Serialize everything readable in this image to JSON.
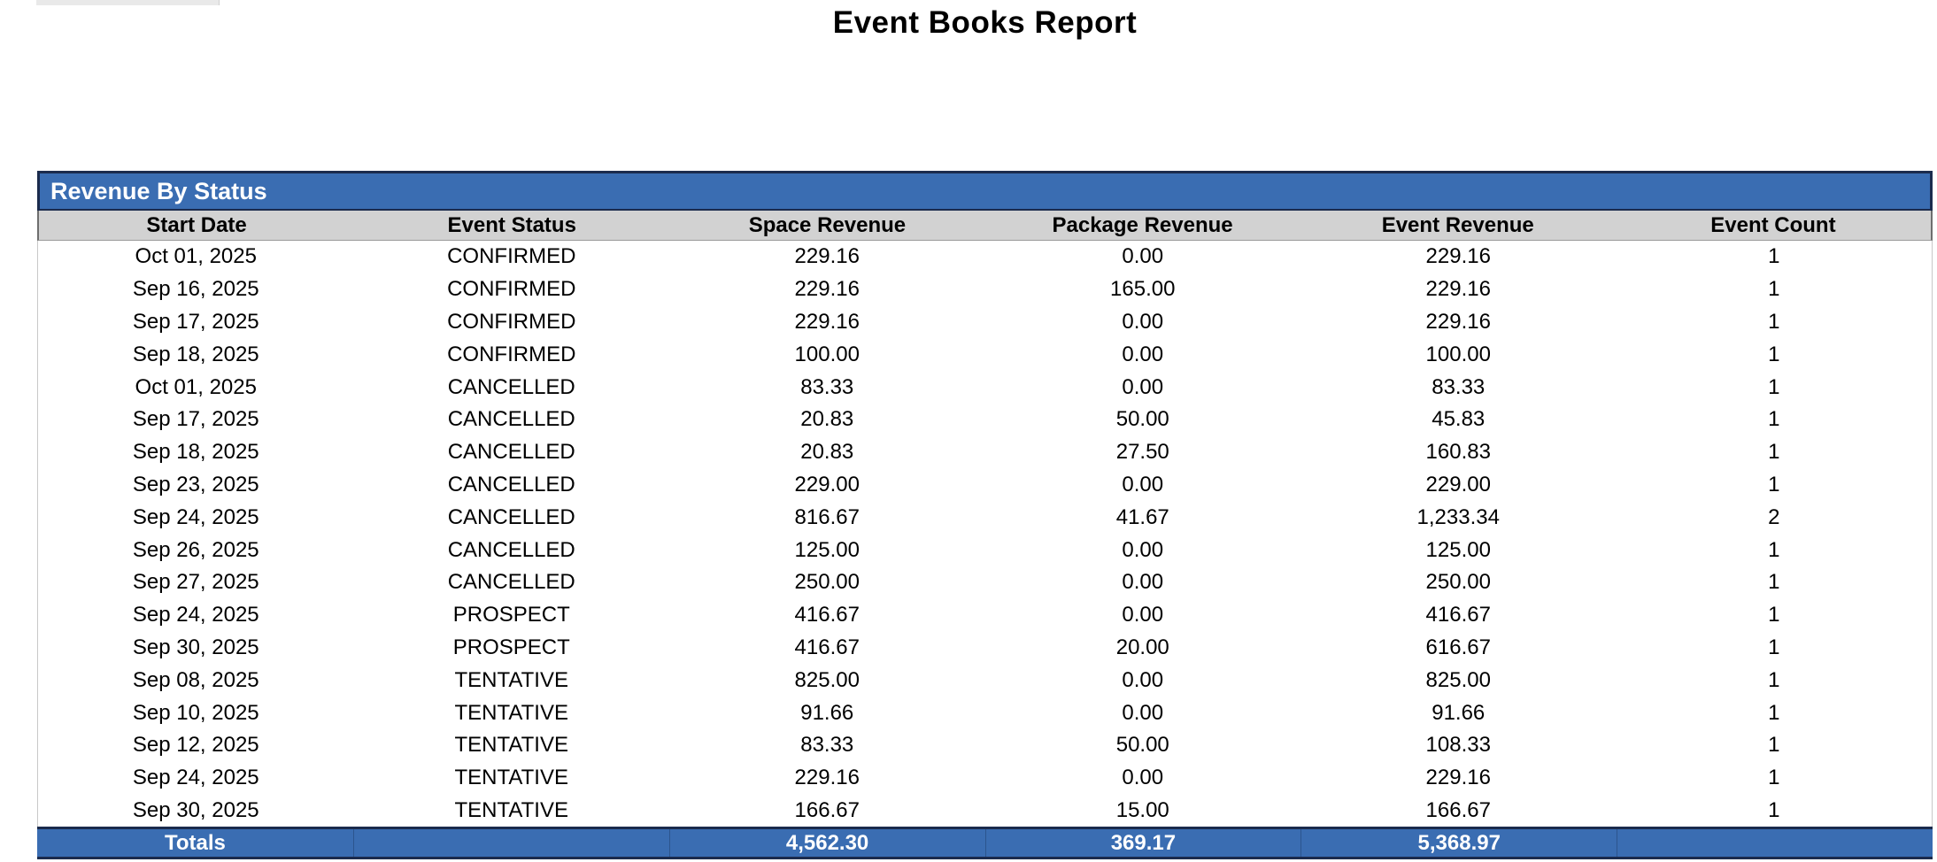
{
  "page": {
    "title": "Event Books Report"
  },
  "report": {
    "section_title": "Revenue By Status",
    "columns": [
      "Start Date",
      "Event Status",
      "Space Revenue",
      "Package Revenue",
      "Event Revenue",
      "Event Count"
    ],
    "rows": [
      [
        "Oct 01, 2025",
        "CONFIRMED",
        "229.16",
        "0.00",
        "229.16",
        "1"
      ],
      [
        "Sep 16, 2025",
        "CONFIRMED",
        "229.16",
        "165.00",
        "229.16",
        "1"
      ],
      [
        "Sep 17, 2025",
        "CONFIRMED",
        "229.16",
        "0.00",
        "229.16",
        "1"
      ],
      [
        "Sep 18, 2025",
        "CONFIRMED",
        "100.00",
        "0.00",
        "100.00",
        "1"
      ],
      [
        "Oct 01, 2025",
        "CANCELLED",
        "83.33",
        "0.00",
        "83.33",
        "1"
      ],
      [
        "Sep 17, 2025",
        "CANCELLED",
        "20.83",
        "50.00",
        "45.83",
        "1"
      ],
      [
        "Sep 18, 2025",
        "CANCELLED",
        "20.83",
        "27.50",
        "160.83",
        "1"
      ],
      [
        "Sep 23, 2025",
        "CANCELLED",
        "229.00",
        "0.00",
        "229.00",
        "1"
      ],
      [
        "Sep 24, 2025",
        "CANCELLED",
        "816.67",
        "41.67",
        "1,233.34",
        "2"
      ],
      [
        "Sep 26, 2025",
        "CANCELLED",
        "125.00",
        "0.00",
        "125.00",
        "1"
      ],
      [
        "Sep 27, 2025",
        "CANCELLED",
        "250.00",
        "0.00",
        "250.00",
        "1"
      ],
      [
        "Sep 24, 2025",
        "PROSPECT",
        "416.67",
        "0.00",
        "416.67",
        "1"
      ],
      [
        "Sep 30, 2025",
        "PROSPECT",
        "416.67",
        "20.00",
        "616.67",
        "1"
      ],
      [
        "Sep 08, 2025",
        "TENTATIVE",
        "825.00",
        "0.00",
        "825.00",
        "1"
      ],
      [
        "Sep 10, 2025",
        "TENTATIVE",
        "91.66",
        "0.00",
        "91.66",
        "1"
      ],
      [
        "Sep 12, 2025",
        "TENTATIVE",
        "83.33",
        "50.00",
        "108.33",
        "1"
      ],
      [
        "Sep 24, 2025",
        "TENTATIVE",
        "229.16",
        "0.00",
        "229.16",
        "1"
      ],
      [
        "Sep 30, 2025",
        "TENTATIVE",
        "166.67",
        "15.00",
        "166.67",
        "1"
      ]
    ],
    "totals": {
      "label": "Totals",
      "event_status": "",
      "space_revenue": "4,562.30",
      "package_revenue": "369.17",
      "event_revenue": "5,368.97",
      "event_count": ""
    },
    "colors": {
      "accent_blue": "#3a6db2",
      "border_navy": "#1b2b4d",
      "header_gray": "#d2d2d2"
    }
  }
}
